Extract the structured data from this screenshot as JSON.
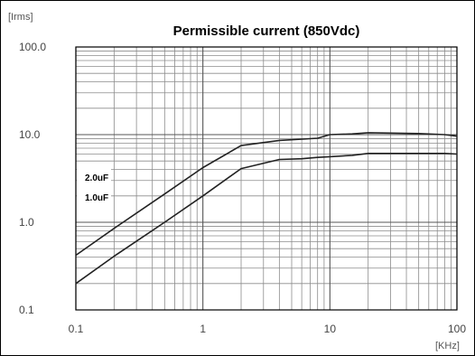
{
  "chart_data": {
    "type": "line",
    "title": "Permissible current (850Vdc)",
    "ylabel": "[Irms]",
    "xlabel": "[KHz]",
    "x_scale": "log",
    "y_scale": "log",
    "xlim": [
      0.1,
      100
    ],
    "ylim": [
      0.1,
      100
    ],
    "x_ticks": [
      0.1,
      1,
      10,
      100
    ],
    "x_tick_labels": [
      "0.1",
      "1",
      "10",
      "100"
    ],
    "y_ticks": [
      0.1,
      1,
      10,
      100
    ],
    "y_tick_labels": [
      "0.1",
      "1.0",
      "10.0",
      "100.0"
    ],
    "grid": true,
    "series": [
      {
        "name": "2.0uF",
        "x": [
          0.1,
          0.2,
          0.5,
          1,
          2,
          4,
          8,
          10,
          15,
          20,
          30,
          50,
          80,
          100
        ],
        "y": [
          0.42,
          0.85,
          2.1,
          4.2,
          7.5,
          8.6,
          9.1,
          10.0,
          10.2,
          10.5,
          10.4,
          10.3,
          10.0,
          9.6
        ]
      },
      {
        "name": "1.0uF",
        "x": [
          0.1,
          0.2,
          0.5,
          1,
          2,
          4,
          6,
          8,
          10,
          15,
          20,
          30,
          50,
          80,
          100
        ],
        "y": [
          0.2,
          0.41,
          1.0,
          2.0,
          4.1,
          5.2,
          5.3,
          5.5,
          5.6,
          5.8,
          6.1,
          6.1,
          6.1,
          6.1,
          6.0
        ]
      }
    ],
    "colors": {
      "line": "#222222",
      "grid": "#7a7a7a",
      "frame": "#000000"
    }
  }
}
